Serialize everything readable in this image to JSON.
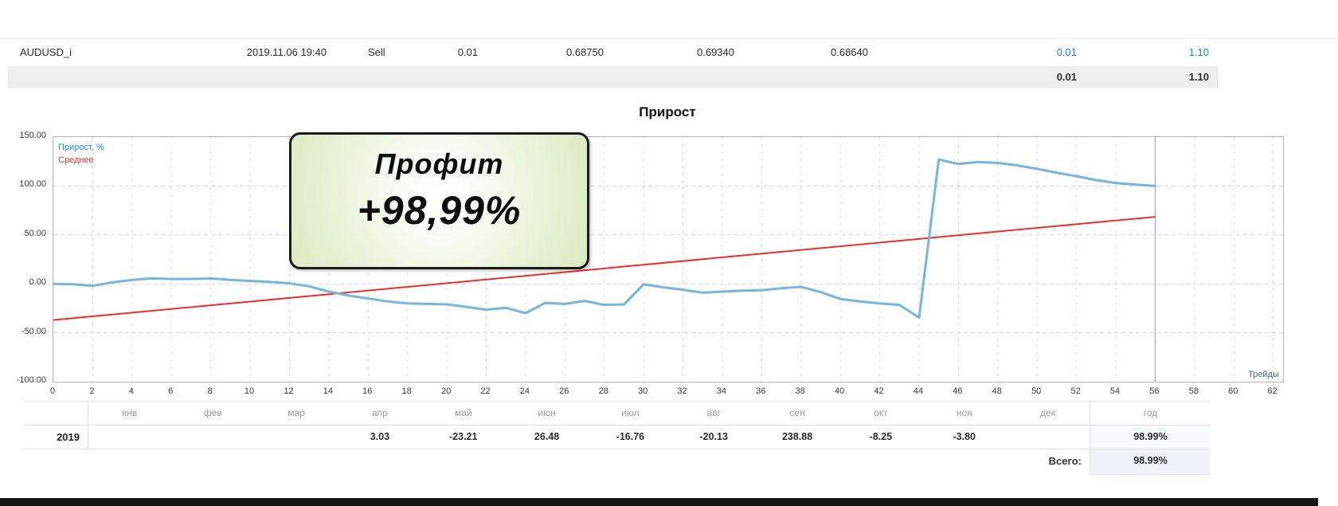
{
  "deal_table": {
    "row": {
      "symbol": "AUDUSD_i",
      "time": "2019.11.06 19:40",
      "type": "Sell",
      "volume": "0.01",
      "price": "0.68750",
      "sl": "0.69340",
      "tp": "0.68640",
      "profit_points": "0.01",
      "profit": "1.10"
    },
    "summary": {
      "profit_points": "0.01",
      "profit": "1.10"
    }
  },
  "chart": {
    "title": "Прирост",
    "legend_growth": "Прирост, %",
    "legend_average": "Среднее",
    "axis_note": "Трейды"
  },
  "chart_data": {
    "type": "line",
    "title": "Прирост",
    "xlabel": "Трейды",
    "xlim": [
      0,
      62.5
    ],
    "ylim": [
      -100,
      150
    ],
    "xticks": [
      0,
      2,
      4,
      6,
      8,
      10,
      12,
      14,
      16,
      18,
      20,
      22,
      24,
      26,
      28,
      30,
      32,
      34,
      36,
      38,
      40,
      42,
      44,
      46,
      48,
      50,
      52,
      54,
      56,
      58,
      60,
      62
    ],
    "ytick_labels": [
      "150.00",
      "100.00",
      "50.00",
      "0.00",
      "-50.00",
      "-100.00"
    ],
    "ytick_values": [
      150,
      100,
      50,
      0,
      -50,
      -100
    ],
    "grid": "dashed",
    "legend_position": "top-left",
    "end_marker_x": 56,
    "series": [
      {
        "name": "Прирост, %",
        "color": "#74b6e2",
        "width": 3,
        "x_start": 0,
        "values": [
          0,
          -0.5,
          -2,
          1.5,
          4,
          5.5,
          5,
          5,
          5.5,
          4,
          3,
          2,
          0.5,
          -2.5,
          -8,
          -12,
          -15,
          -18,
          -20,
          -20.5,
          -21,
          -23.5,
          -26.5,
          -24.5,
          -30,
          -19.5,
          -20.5,
          -17.5,
          -21.5,
          -21,
          -0.5,
          -3.5,
          -6,
          -9,
          -8,
          -7,
          -6.5,
          -4.5,
          -3,
          -8.5,
          -15.5,
          -18,
          -20,
          -21.5,
          -34.5,
          127,
          122.5,
          124.5,
          123.5,
          121,
          117.5,
          113.5,
          110,
          106,
          103,
          101.5,
          100
        ]
      },
      {
        "name": "Среднее",
        "color": "#e9312b",
        "width": 2,
        "x": [
          0,
          56
        ],
        "values": [
          -37,
          68.5
        ]
      }
    ]
  },
  "badge": {
    "line1": "Профит",
    "line2": "+98,99%"
  },
  "monthly_table": {
    "year_header": "год",
    "months": [
      "янв",
      "фев",
      "мар",
      "апр",
      "май",
      "июн",
      "июл",
      "авг",
      "сен",
      "окт",
      "ноя",
      "дек"
    ],
    "rows": [
      {
        "year": "2019",
        "values": [
          "",
          "",
          "",
          "3.03",
          "-23.21",
          "26.48",
          "-16.76",
          "-20.13",
          "238.88",
          "-8.25",
          "-3.80",
          ""
        ],
        "year_total": "98.99%"
      }
    ],
    "total_label": "Всего:",
    "total_value": "98.99%"
  },
  "colors": {
    "positive": "#1c86c8",
    "negative": "#e23a36",
    "growth_line": "#74b6e2",
    "average_line": "#e9312b",
    "summary_row_bg": "#efefef",
    "total_cell_bg": "#edf3f8"
  }
}
